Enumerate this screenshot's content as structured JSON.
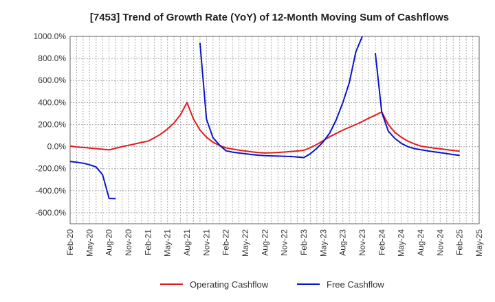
{
  "chart_data": {
    "type": "line",
    "title": "[7453]  Trend of Growth Rate (YoY) of 12-Month Moving Sum of Cashflows",
    "xlabel": "",
    "ylabel": "",
    "ylim": [
      -700,
      1000
    ],
    "yticks": [
      -600,
      -400,
      -200,
      0,
      200,
      400,
      600,
      800,
      1000
    ],
    "ytick_labels": [
      "-600.0%",
      "-400.0%",
      "-200.0%",
      "0.0%",
      "200.0%",
      "400.0%",
      "600.0%",
      "800.0%",
      "1000.0%"
    ],
    "x_start": "Feb-20",
    "x_tick_labels": [
      "Feb-20",
      "May-20",
      "Aug-20",
      "Nov-20",
      "Feb-21",
      "May-21",
      "Aug-21",
      "Nov-21",
      "Feb-22",
      "May-22",
      "Aug-22",
      "Nov-22",
      "Feb-23",
      "May-23",
      "Aug-23",
      "Nov-23",
      "Feb-24",
      "May-24",
      "Aug-24",
      "Nov-24",
      "Feb-25",
      "May-25"
    ],
    "grid": true,
    "legend_position": "bottom-center",
    "series": [
      {
        "name": "Operating Cashflow",
        "color": "#e31a1c",
        "points": [
          [
            "Feb-20",
            5
          ],
          [
            "Mar-20",
            -3
          ],
          [
            "Apr-20",
            -8
          ],
          [
            "May-20",
            -13
          ],
          [
            "Jun-20",
            -18
          ],
          [
            "Jul-20",
            -24
          ],
          [
            "Aug-20",
            -30
          ],
          [
            "Sep-20",
            -15
          ],
          [
            "Oct-20",
            0
          ],
          [
            "Nov-20",
            12
          ],
          [
            "Dec-20",
            25
          ],
          [
            "Jan-21",
            38
          ],
          [
            "Feb-21",
            50
          ],
          [
            "Mar-21",
            80
          ],
          [
            "Apr-21",
            115
          ],
          [
            "May-21",
            160
          ],
          [
            "Jun-21",
            215
          ],
          [
            "Jul-21",
            290
          ],
          [
            "Aug-21",
            400
          ],
          [
            "Sep-21",
            250
          ],
          [
            "Oct-21",
            150
          ],
          [
            "Nov-21",
            85
          ],
          [
            "Dec-21",
            40
          ],
          [
            "Jan-22",
            10
          ],
          [
            "Feb-22",
            -12
          ],
          [
            "Mar-22",
            -22
          ],
          [
            "Apr-22",
            -32
          ],
          [
            "May-22",
            -40
          ],
          [
            "Jun-22",
            -48
          ],
          [
            "Jul-22",
            -54
          ],
          [
            "Aug-22",
            -58
          ],
          [
            "Sep-22",
            -56
          ],
          [
            "Oct-22",
            -53
          ],
          [
            "Nov-22",
            -49
          ],
          [
            "Dec-22",
            -45
          ],
          [
            "Jan-23",
            -40
          ],
          [
            "Feb-23",
            -34
          ],
          [
            "Mar-23",
            -10
          ],
          [
            "Apr-23",
            20
          ],
          [
            "May-23",
            55
          ],
          [
            "Jun-23",
            90
          ],
          [
            "Jul-23",
            120
          ],
          [
            "Aug-23",
            150
          ],
          [
            "Sep-23",
            175
          ],
          [
            "Oct-23",
            200
          ],
          [
            "Nov-23",
            228
          ],
          [
            "Dec-23",
            258
          ],
          [
            "Jan-24",
            285
          ],
          [
            "Feb-24",
            315
          ],
          [
            "Mar-24",
            200
          ],
          [
            "Apr-24",
            130
          ],
          [
            "May-24",
            85
          ],
          [
            "Jun-24",
            50
          ],
          [
            "Jul-24",
            25
          ],
          [
            "Aug-24",
            5
          ],
          [
            "Sep-24",
            -5
          ],
          [
            "Oct-24",
            -13
          ],
          [
            "Nov-24",
            -20
          ],
          [
            "Dec-24",
            -28
          ],
          [
            "Jan-25",
            -35
          ],
          [
            "Feb-25",
            -42
          ]
        ]
      },
      {
        "name": "Free Cashflow",
        "color": "#0a14c8",
        "segments": [
          [
            [
              "Feb-20",
              -135
            ],
            [
              "Mar-20",
              -142
            ],
            [
              "Apr-20",
              -150
            ],
            [
              "May-20",
              -165
            ],
            [
              "Jun-20",
              -185
            ],
            [
              "Jul-20",
              -255
            ],
            [
              "Aug-20",
              -470
            ],
            [
              "Sep-20",
              -472
            ]
          ],
          [
            [
              "Oct-21",
              940
            ],
            [
              "Nov-21",
              250
            ],
            [
              "Dec-21",
              80
            ],
            [
              "Jan-22",
              15
            ],
            [
              "Feb-22",
              -38
            ],
            [
              "Mar-22",
              -50
            ],
            [
              "Apr-22",
              -58
            ],
            [
              "May-22",
              -65
            ],
            [
              "Jun-22",
              -72
            ],
            [
              "Jul-22",
              -78
            ],
            [
              "Aug-22",
              -82
            ],
            [
              "Sep-22",
              -84
            ],
            [
              "Oct-22",
              -86
            ],
            [
              "Nov-22",
              -88
            ],
            [
              "Dec-22",
              -90
            ],
            [
              "Jan-23",
              -95
            ],
            [
              "Feb-23",
              -100
            ],
            [
              "Mar-23",
              -65
            ],
            [
              "Apr-23",
              -15
            ],
            [
              "May-23",
              45
            ],
            [
              "Jun-23",
              125
            ],
            [
              "Jul-23",
              245
            ],
            [
              "Aug-23",
              400
            ],
            [
              "Sep-23",
              580
            ],
            [
              "Oct-23",
              860
            ],
            [
              "Nov-23",
              1000
            ]
          ],
          [
            [
              "Jan-24",
              850
            ],
            [
              "Feb-24",
              310
            ],
            [
              "Mar-24",
              140
            ],
            [
              "Apr-24",
              75
            ],
            [
              "May-24",
              30
            ],
            [
              "Jun-24",
              0
            ],
            [
              "Jul-24",
              -18
            ],
            [
              "Aug-24",
              -28
            ],
            [
              "Sep-24",
              -38
            ],
            [
              "Oct-24",
              -47
            ],
            [
              "Nov-24",
              -55
            ],
            [
              "Dec-24",
              -63
            ],
            [
              "Jan-25",
              -72
            ],
            [
              "Feb-25",
              -80
            ]
          ]
        ]
      }
    ]
  }
}
